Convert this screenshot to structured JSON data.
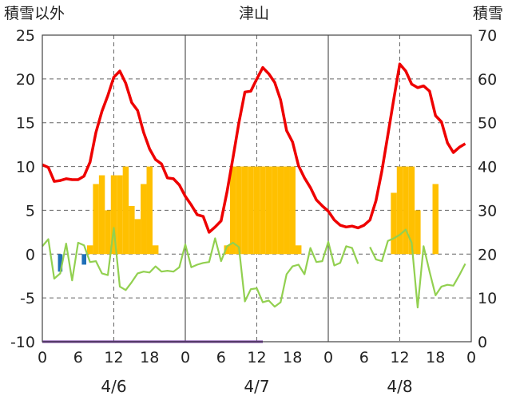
{
  "chart_data": {
    "type": "line+bar",
    "title": "津山",
    "left_axis_title": "積雪以外",
    "right_axis_title": "積雪",
    "ylim": [
      -10,
      25
    ],
    "y2lim": [
      0,
      70
    ],
    "yticks": [
      -10,
      -5,
      0,
      5,
      10,
      15,
      20,
      25
    ],
    "y2ticks": [
      0,
      10,
      20,
      30,
      40,
      50,
      60,
      70
    ],
    "x_range_hours": [
      0,
      72
    ],
    "x_tick_labels": [
      "0",
      "6",
      "12",
      "18",
      "0",
      "6",
      "12",
      "18",
      "0",
      "6",
      "12",
      "18",
      "0"
    ],
    "dates": [
      "4/6",
      "4/7",
      "4/8"
    ],
    "grid": true,
    "colors": {
      "temperature": "#ee0000",
      "dewpoint": "#92d050",
      "precip": "#ffc000",
      "negative_bars": "#1f6fb8",
      "snow_line": "#7030a0",
      "gridline": "#666666",
      "day_divider": "#555555"
    },
    "series": [
      {
        "name": "temperature",
        "type": "line",
        "axis": "left",
        "x": [
          0,
          1,
          2,
          3,
          4,
          5,
          6,
          7,
          8,
          9,
          10,
          11,
          12,
          13,
          14,
          15,
          16,
          17,
          18,
          19,
          20,
          21,
          22,
          23,
          24,
          25,
          26,
          27,
          28,
          29,
          30,
          31,
          32,
          33,
          34,
          35,
          36,
          37,
          38,
          39,
          40,
          41,
          42,
          43,
          44,
          45,
          46,
          47,
          48,
          49,
          50,
          51,
          52,
          53,
          54,
          55,
          56,
          57,
          58,
          59,
          60,
          61,
          62,
          63,
          64,
          65,
          66,
          67,
          68,
          69,
          70,
          71
        ],
        "values": [
          10.2,
          9.9,
          8.3,
          8.4,
          8.6,
          8.5,
          8.5,
          8.9,
          10.5,
          13.9,
          16.3,
          18.1,
          20.2,
          20.9,
          19.5,
          17.3,
          16.4,
          13.9,
          12.0,
          10.8,
          10.3,
          8.7,
          8.6,
          7.9,
          6.6,
          5.6,
          4.5,
          4.3,
          2.5,
          3.1,
          3.8,
          7.1,
          11.0,
          15.0,
          18.5,
          18.6,
          20.0,
          21.3,
          20.6,
          19.6,
          17.6,
          14.1,
          12.8,
          10.1,
          8.7,
          7.6,
          6.2,
          5.5,
          4.9,
          3.9,
          3.3,
          3.1,
          3.2,
          3.0,
          3.3,
          3.9,
          6.1,
          9.5,
          13.6,
          17.7,
          21.7,
          20.9,
          19.4,
          19.0,
          19.2,
          18.6,
          15.8,
          15.1,
          12.7,
          11.6,
          12.2,
          12.6
        ]
      },
      {
        "name": "dewpoint",
        "type": "line",
        "axis": "left",
        "x": [
          0,
          1,
          2,
          3,
          4,
          5,
          6,
          7,
          8,
          9,
          10,
          11,
          12,
          13,
          14,
          15,
          16,
          17,
          18,
          19,
          20,
          21,
          22,
          23,
          24,
          25,
          26,
          27,
          28,
          29,
          30,
          31,
          32,
          33,
          34,
          35,
          36,
          37,
          38,
          39,
          40,
          41,
          42,
          43,
          44,
          45,
          46,
          47,
          48,
          49,
          50,
          51,
          52,
          53,
          54,
          55,
          56,
          57,
          58,
          59,
          60,
          61,
          62,
          63,
          64,
          65,
          66,
          67,
          68,
          69,
          70,
          71
        ],
        "values": [
          0.9,
          1.7,
          -2.8,
          -2.2,
          1.2,
          -3.0,
          1.3,
          1.0,
          -0.9,
          -0.8,
          -2.2,
          -2.4,
          3.0,
          -3.7,
          -4.1,
          -3.2,
          -2.2,
          -2.0,
          -2.1,
          -1.4,
          -2.0,
          -1.9,
          -2.0,
          -1.5,
          1.1,
          -1.5,
          -1.2,
          -1.0,
          -0.9,
          1.8,
          -0.8,
          0.9,
          1.3,
          0.8,
          -5.4,
          -4.0,
          -3.9,
          -5.5,
          -5.3,
          -6.0,
          -5.5,
          -2.3,
          -1.4,
          -1.2,
          -2.3,
          0.7,
          -0.9,
          -0.8,
          1.4,
          -1.3,
          -1.0,
          0.9,
          0.7,
          -1.1,
          null,
          0.8,
          -0.6,
          -0.8,
          1.5,
          1.8,
          2.2,
          2.8,
          1.3,
          -6.1,
          0.9,
          -2.0,
          -4.7,
          -3.7,
          -3.5,
          -3.6,
          -2.4,
          -1.1
        ]
      },
      {
        "name": "precip",
        "type": "bar",
        "axis": "left",
        "x": [
          8,
          9,
          10,
          11,
          12,
          13,
          14,
          15,
          16,
          17,
          18,
          19,
          31,
          32,
          33,
          34,
          35,
          36,
          37,
          38,
          39,
          40,
          41,
          42,
          43,
          59,
          60,
          61,
          62,
          63,
          66
        ],
        "values": [
          1,
          8,
          9,
          5,
          9,
          9,
          10,
          5.5,
          4,
          8,
          10,
          1,
          1,
          10,
          10,
          10,
          10,
          10,
          10,
          10,
          10,
          10,
          10,
          10,
          1,
          7,
          10,
          10,
          10,
          5,
          8
        ]
      },
      {
        "name": "negative",
        "type": "bar",
        "axis": "left",
        "x": [
          3,
          7
        ],
        "values": [
          -2.0,
          -1.2
        ]
      },
      {
        "name": "snow_depth",
        "type": "line",
        "axis": "right",
        "x": [
          0,
          37
        ],
        "values": [
          0,
          0
        ]
      }
    ]
  }
}
